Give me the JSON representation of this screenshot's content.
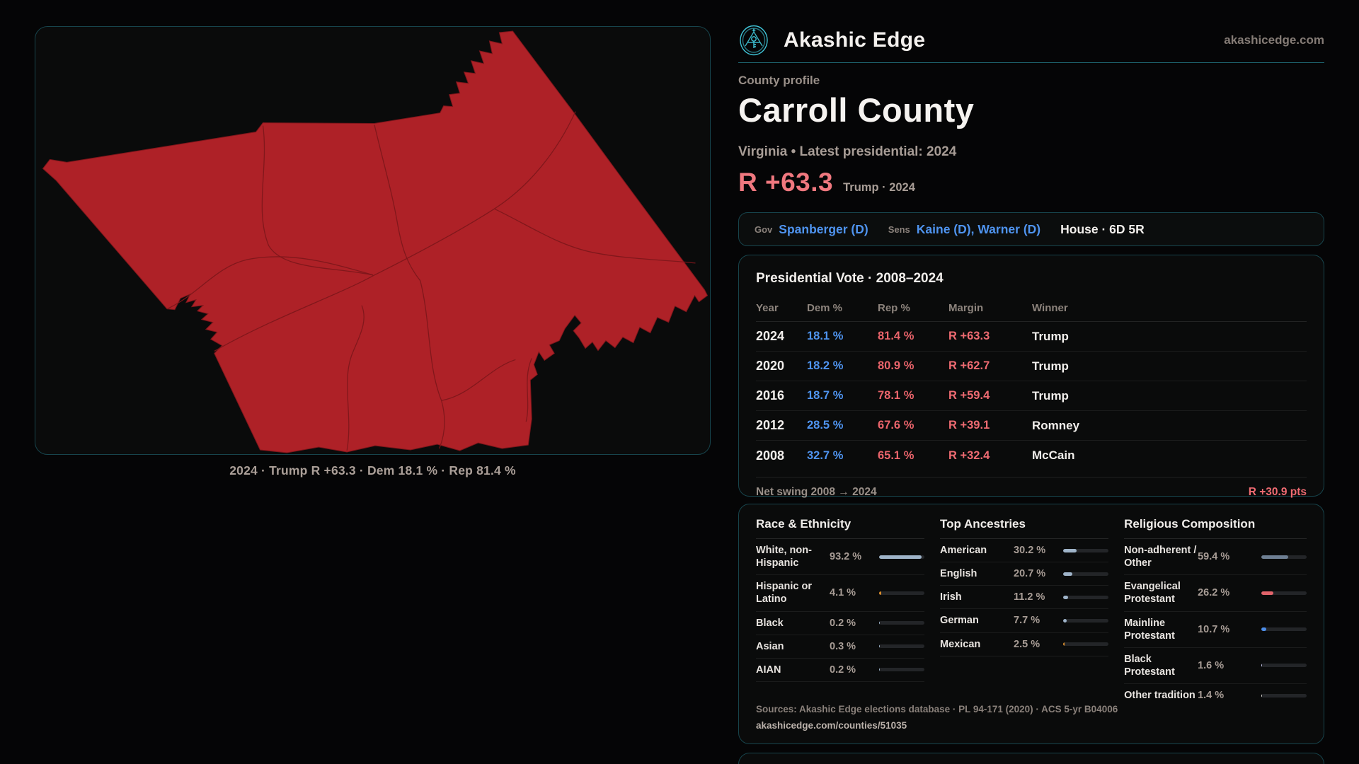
{
  "colors": {
    "accent_teal": "#3fc3d6",
    "dem_blue": "#4f94f0",
    "rep_red": "#e9646b",
    "margin_red": "#ef6b72",
    "map_fill": "#ae2127",
    "map_boundary": "#7c161b"
  },
  "brand": {
    "name": "Akashic Edge",
    "domain": "akashicedge.com"
  },
  "profile": {
    "kicker": "County profile",
    "county": "Carroll County",
    "subtitle": "Virginia • Latest presidential: 2024",
    "margin_big": "R +63.3",
    "margin_context": "Trump · 2024"
  },
  "officials": {
    "gov_label": "Gov",
    "gov_value": "Spanberger (D)",
    "sens_label": "Sens",
    "sens_value": "Kaine (D), Warner (D)",
    "house_value": "House · 6D 5R"
  },
  "map": {
    "caption": "2024 · Trump R +63.3 · Dem 18.1 % · Rep 81.4 %"
  },
  "pres_table": {
    "title": "Presidential Vote · 2008–2024",
    "headers": [
      "Year",
      "Dem %",
      "Rep %",
      "Margin",
      "Winner"
    ],
    "rows": [
      {
        "year": "2024",
        "dem": "18.1 %",
        "rep": "81.4 %",
        "margin": "R +63.3",
        "winner": "Trump"
      },
      {
        "year": "2020",
        "dem": "18.2 %",
        "rep": "80.9 %",
        "margin": "R +62.7",
        "winner": "Trump"
      },
      {
        "year": "2016",
        "dem": "18.7 %",
        "rep": "78.1 %",
        "margin": "R +59.4",
        "winner": "Trump"
      },
      {
        "year": "2012",
        "dem": "28.5 %",
        "rep": "67.6 %",
        "margin": "R +39.1",
        "winner": "Romney"
      },
      {
        "year": "2008",
        "dem": "32.7 %",
        "rep": "65.1 %",
        "margin": "R +32.4",
        "winner": "McCain"
      }
    ],
    "net_swing_label": "Net swing 2008 → 2024",
    "net_swing_value": "R +30.9 pts"
  },
  "demographics": {
    "race": {
      "title": "Race & Ethnicity",
      "rows": [
        {
          "label": "White, non-Hispanic",
          "value": "93.2 %",
          "pct": 93.2,
          "color": "#9fb4c9"
        },
        {
          "label": "Hispanic or Latino",
          "value": "4.1 %",
          "pct": 4.1,
          "color": "#d98c2b"
        },
        {
          "label": "Black",
          "value": "0.2 %",
          "pct": 0.2,
          "color": "#9fb4c9"
        },
        {
          "label": "Asian",
          "value": "0.3 %",
          "pct": 0.3,
          "color": "#9fb4c9"
        },
        {
          "label": "AIAN",
          "value": "0.2 %",
          "pct": 0.2,
          "color": "#9fb4c9"
        }
      ]
    },
    "ancestries": {
      "title": "Top Ancestries",
      "rows": [
        {
          "label": "American",
          "value": "30.2 %",
          "pct": 30.2,
          "color": "#9fb4c9"
        },
        {
          "label": "English",
          "value": "20.7 %",
          "pct": 20.7,
          "color": "#9fb4c9"
        },
        {
          "label": "Irish",
          "value": "11.2 %",
          "pct": 11.2,
          "color": "#9fb4c9"
        },
        {
          "label": "German",
          "value": "7.7 %",
          "pct": 7.7,
          "color": "#9fb4c9"
        },
        {
          "label": "Mexican",
          "value": "2.5 %",
          "pct": 2.5,
          "color": "#d98c2b"
        }
      ]
    },
    "religion": {
      "title": "Religious Composition",
      "rows": [
        {
          "label": "Non-adherent / Other",
          "value": "59.4 %",
          "pct": 59.4,
          "color": "#6e7f93"
        },
        {
          "label": "Evangelical Protestant",
          "value": "26.2 %",
          "pct": 26.2,
          "color": "#e2646b"
        },
        {
          "label": "Mainline Protestant",
          "value": "10.7 %",
          "pct": 10.7,
          "color": "#4d8ee9"
        },
        {
          "label": "Black Protestant",
          "value": "1.6 %",
          "pct": 1.6,
          "color": "#c9c9f2"
        },
        {
          "label": "Other tradition",
          "value": "1.4 %",
          "pct": 1.4,
          "color": "#d9d5d2"
        }
      ]
    }
  },
  "sources": {
    "line1": "Sources: Akashic Edge elections database · PL 94-171 (2020) · ACS 5-yr B04006",
    "line2": "akashicedge.com/counties/51035"
  }
}
